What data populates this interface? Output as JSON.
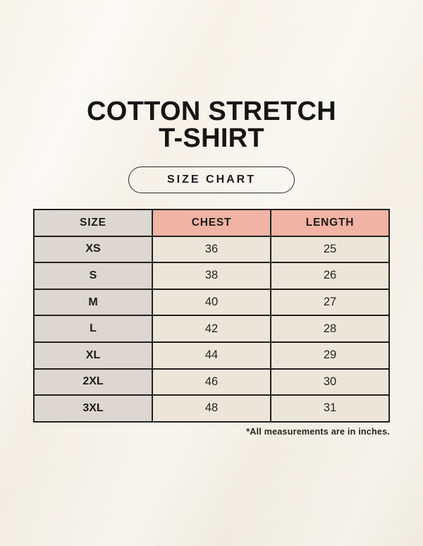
{
  "header": {
    "title_line1": "COTTON STRETCH",
    "title_line2": "T-SHIRT",
    "badge_label": "SIZE CHART"
  },
  "footnote": "*All measurements are in inches.",
  "colors": {
    "background": "#f4f0e7",
    "accent_header": "#f0b3a4",
    "size_column": "#dcd7d0",
    "data_cell": "#ece6da",
    "table_border": "#23211d",
    "text": "#161513"
  },
  "chart_data": {
    "type": "table",
    "units": "inches",
    "columns": [
      "SIZE",
      "CHEST",
      "LENGTH"
    ],
    "rows": [
      [
        "XS",
        "36",
        "25"
      ],
      [
        "S",
        "38",
        "26"
      ],
      [
        "M",
        "40",
        "27"
      ],
      [
        "L",
        "42",
        "28"
      ],
      [
        "XL",
        "44",
        "29"
      ],
      [
        "2XL",
        "46",
        "30"
      ],
      [
        "3XL",
        "48",
        "31"
      ]
    ]
  }
}
